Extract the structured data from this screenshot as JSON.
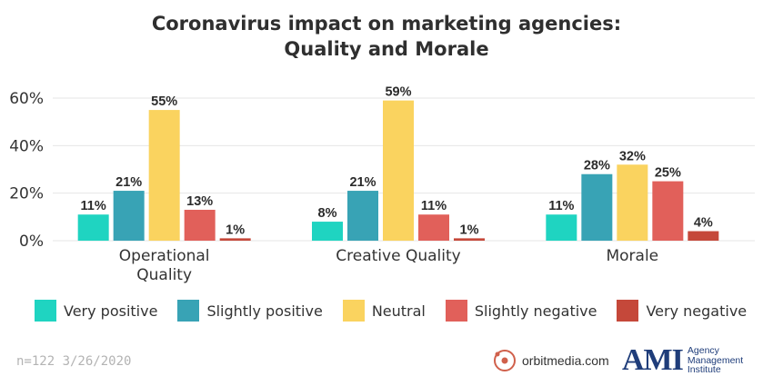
{
  "title_line1": "Coronavirus impact on marketing agencies:",
  "title_line2": "Quality and Morale",
  "chart_data": {
    "type": "bar",
    "title": "Coronavirus impact on marketing agencies: Quality and Morale",
    "categories": [
      "Operational Quality",
      "Creative Quality",
      "Morale"
    ],
    "category_lines": [
      [
        "Operational",
        "Quality"
      ],
      [
        "Creative Quality"
      ],
      [
        "Morale"
      ]
    ],
    "series": [
      {
        "name": "Very positive",
        "color": "#1fd4c1",
        "values": [
          11,
          8,
          11
        ]
      },
      {
        "name": "Slightly positive",
        "color": "#38a3b5",
        "values": [
          21,
          21,
          28
        ]
      },
      {
        "name": "Neutral",
        "color": "#fad35f",
        "values": [
          55,
          59,
          32
        ]
      },
      {
        "name": "Slightly negative",
        "color": "#e1605a",
        "values": [
          13,
          11,
          25
        ]
      },
      {
        "name": "Very negative",
        "color": "#c5483a",
        "values": [
          1,
          1,
          4
        ]
      }
    ],
    "value_labels": [
      [
        "11%",
        "8%",
        "11%"
      ],
      [
        "21%",
        "21%",
        "28%"
      ],
      [
        "55%",
        "59%",
        "32%"
      ],
      [
        "13%",
        "11%",
        "25%"
      ],
      [
        "1%",
        "1%",
        "4%"
      ]
    ],
    "ylim": [
      0,
      60
    ],
    "yticks": [
      0,
      20,
      40,
      60
    ],
    "ytick_labels": [
      "0%",
      "20%",
      "40%",
      "60%"
    ],
    "grid": true,
    "legend": "bottom"
  },
  "footer": {
    "note": "n=122 3/26/2020",
    "orbit_logo": "orbitmedia.com",
    "ami_logo": "AMI",
    "ami_sub": [
      "Agency",
      "Management",
      "Institute"
    ]
  }
}
